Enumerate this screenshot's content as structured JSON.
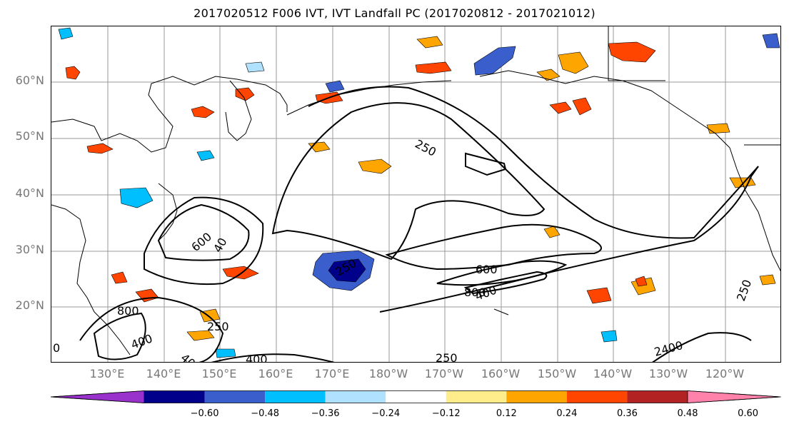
{
  "title": "2017020512 F006 IVT, IVT Landfall PC (2017020812 - 2017021012)",
  "map": {
    "lat_labels": [
      "60°N",
      "50°N",
      "40°N",
      "30°N",
      "20°N"
    ],
    "lon_labels": [
      "130°E",
      "140°E",
      "150°E",
      "160°E",
      "170°E",
      "180°W",
      "170°W",
      "160°W",
      "150°W",
      "140°W",
      "130°W",
      "120°W"
    ],
    "contour_labels": [
      "250",
      "600",
      "40",
      "250",
      "600",
      "800",
      "400",
      "800",
      "400",
      "250",
      "400",
      "40",
      "250",
      "2400",
      "250",
      "0"
    ]
  },
  "colorbar": {
    "colors": [
      "#9932cc",
      "#00008b",
      "#3a5fcd",
      "#00bfff",
      "#b0e2ff",
      "#ffffff",
      "#ffec8b",
      "#ffa500",
      "#ff4500",
      "#b22222",
      "#ff82ab"
    ],
    "ticks": [
      "−0.60",
      "−0.48",
      "−0.36",
      "−0.24",
      "−0.12",
      "0.12",
      "0.24",
      "0.36",
      "0.48",
      "0.60"
    ]
  }
}
